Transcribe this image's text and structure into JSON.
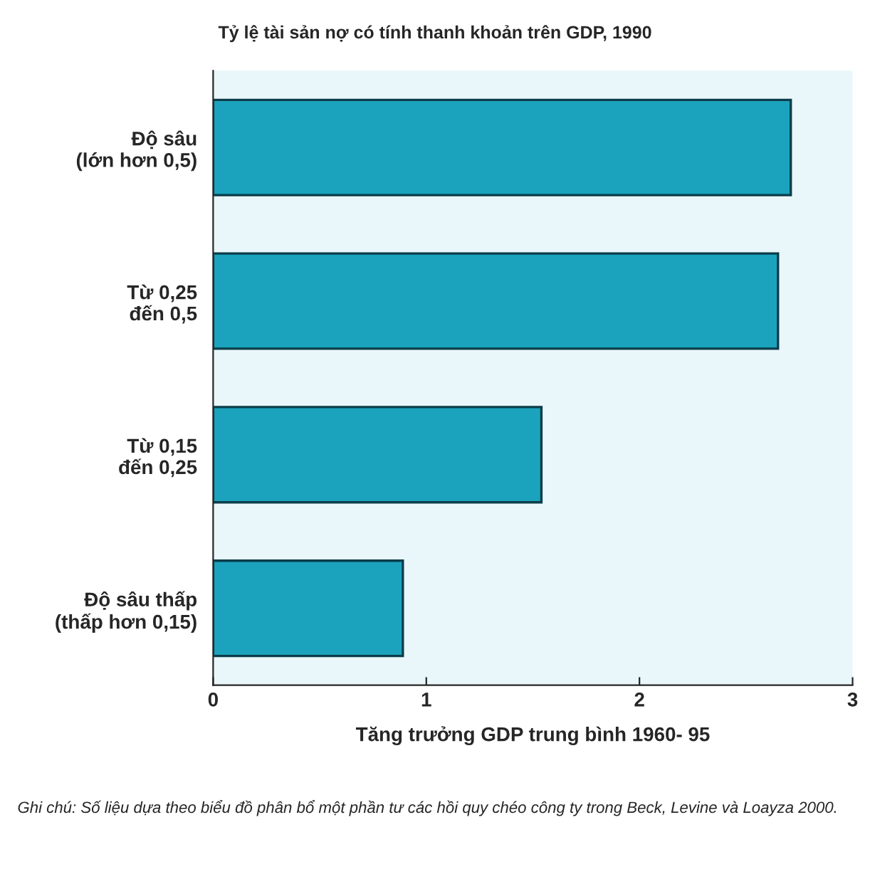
{
  "chart_data": {
    "type": "bar",
    "orientation": "horizontal",
    "title": "Tỷ lệ tài sản nợ có tính thanh khoản trên GDP, 1990",
    "xlabel": "Tăng trưởng GDP trung bình 1960- 95",
    "categories": [
      "Độ sâu\n(lớn hơn 0,5)",
      "Từ 0,25\nđến 0,5",
      "Từ 0,15\nđến 0,25",
      "Độ sâu thấp\n(thấp hơn 0,15)"
    ],
    "values": [
      2.71,
      2.65,
      1.54,
      0.89
    ],
    "color": "#1ba3bd",
    "xlim": [
      0,
      3
    ],
    "xticks": [
      0,
      1,
      2,
      3
    ],
    "annotations": [
      "Ghi chú: Số liệu dựa theo biểu đồ phân bổ một phần tư các hồi quy chéo công ty trong Beck, Levine và Loayza 2000."
    ]
  }
}
